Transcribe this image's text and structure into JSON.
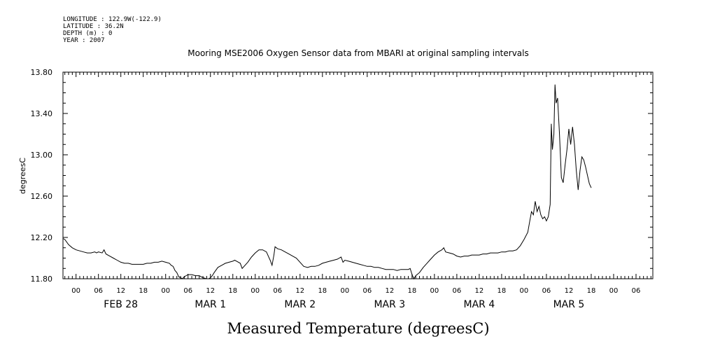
{
  "header": {
    "longitude": "LONGITUDE : 122.9W(-122.9)",
    "latitude": "LATITUDE : 36.2N",
    "depth": "DEPTH (m) : 0",
    "year": "YEAR : 2007"
  },
  "chart_data": {
    "type": "line",
    "title": "Mooring MSE2006 Oxygen Sensor data from MBARI at original sampling intervals",
    "ylabel": "degreesC",
    "caption": "Measured Temperature (degreesC)",
    "ylim": [
      11.8,
      13.8
    ],
    "yticks": [
      "11.80",
      "12.20",
      "12.60",
      "13.00",
      "13.40",
      "13.80"
    ],
    "xlim_hours": [
      -3.5,
      154.5
    ],
    "hour_ticks": [
      {
        "h": 0,
        "label": "00"
      },
      {
        "h": 6,
        "label": "06"
      },
      {
        "h": 12,
        "label": "12"
      },
      {
        "h": 18,
        "label": "18"
      },
      {
        "h": 24,
        "label": "00"
      },
      {
        "h": 30,
        "label": "06"
      },
      {
        "h": 36,
        "label": "12"
      },
      {
        "h": 42,
        "label": "18"
      },
      {
        "h": 48,
        "label": "00"
      },
      {
        "h": 54,
        "label": "06"
      },
      {
        "h": 60,
        "label": "12"
      },
      {
        "h": 66,
        "label": "18"
      },
      {
        "h": 72,
        "label": "00"
      },
      {
        "h": 78,
        "label": "06"
      },
      {
        "h": 84,
        "label": "12"
      },
      {
        "h": 90,
        "label": "18"
      },
      {
        "h": 96,
        "label": "00"
      },
      {
        "h": 102,
        "label": "06"
      },
      {
        "h": 108,
        "label": "12"
      },
      {
        "h": 114,
        "label": "18"
      },
      {
        "h": 120,
        "label": "00"
      },
      {
        "h": 126,
        "label": "06"
      },
      {
        "h": 132,
        "label": "12"
      },
      {
        "h": 138,
        "label": "18"
      },
      {
        "h": 144,
        "label": "00"
      },
      {
        "h": 150,
        "label": "06"
      }
    ],
    "day_labels": [
      {
        "h": 12,
        "label": "FEB 28"
      },
      {
        "h": 36,
        "label": "MAR  1"
      },
      {
        "h": 60,
        "label": "MAR  2"
      },
      {
        "h": 84,
        "label": "MAR  3"
      },
      {
        "h": 108,
        "label": "MAR  4"
      },
      {
        "h": 132,
        "label": "MAR  5"
      }
    ],
    "series": [
      {
        "points": [
          [
            -3.5,
            12.19
          ],
          [
            -3,
            12.18
          ],
          [
            -2,
            12.13
          ],
          [
            -1,
            12.1
          ],
          [
            0,
            12.08
          ],
          [
            1,
            12.07
          ],
          [
            2,
            12.06
          ],
          [
            3,
            12.05
          ],
          [
            4,
            12.05
          ],
          [
            5,
            12.06
          ],
          [
            5.5,
            12.05
          ],
          [
            6,
            12.06
          ],
          [
            7,
            12.05
          ],
          [
            7.5,
            12.08
          ],
          [
            8,
            12.04
          ],
          [
            9,
            12.02
          ],
          [
            10,
            12.0
          ],
          [
            11,
            11.98
          ],
          [
            12,
            11.96
          ],
          [
            13,
            11.95
          ],
          [
            14,
            11.95
          ],
          [
            15,
            11.94
          ],
          [
            16,
            11.94
          ],
          [
            17,
            11.94
          ],
          [
            18,
            11.94
          ],
          [
            19,
            11.95
          ],
          [
            20,
            11.95
          ],
          [
            21,
            11.96
          ],
          [
            22,
            11.96
          ],
          [
            23,
            11.97
          ],
          [
            24,
            11.96
          ],
          [
            25,
            11.95
          ],
          [
            25.5,
            11.93
          ],
          [
            26,
            11.92
          ],
          [
            26.5,
            11.88
          ],
          [
            27,
            11.86
          ],
          [
            27.5,
            11.82
          ],
          [
            28,
            11.81
          ],
          [
            28.5,
            11.8
          ],
          [
            29,
            11.82
          ],
          [
            30,
            11.84
          ],
          [
            31,
            11.84
          ],
          [
            32,
            11.83
          ],
          [
            33,
            11.83
          ],
          [
            33.5,
            11.82
          ],
          [
            34,
            11.81
          ],
          [
            35,
            11.8
          ],
          [
            35.5,
            11.8
          ],
          [
            36,
            11.81
          ],
          [
            36.5,
            11.83
          ],
          [
            37,
            11.86
          ],
          [
            38,
            11.91
          ],
          [
            39,
            11.93
          ],
          [
            40,
            11.95
          ],
          [
            41,
            11.96
          ],
          [
            42,
            11.97
          ],
          [
            42.5,
            11.98
          ],
          [
            43,
            11.97
          ],
          [
            44,
            11.95
          ],
          [
            44.5,
            11.9
          ],
          [
            45,
            11.92
          ],
          [
            46,
            11.96
          ],
          [
            47,
            12.01
          ],
          [
            48,
            12.05
          ],
          [
            49,
            12.08
          ],
          [
            50,
            12.08
          ],
          [
            51,
            12.06
          ],
          [
            51.5,
            12.02
          ],
          [
            52,
            11.98
          ],
          [
            52.5,
            11.93
          ],
          [
            53,
            12.03
          ],
          [
            53.3,
            12.11
          ],
          [
            54,
            12.09
          ],
          [
            55,
            12.08
          ],
          [
            56,
            12.06
          ],
          [
            57,
            12.04
          ],
          [
            58,
            12.02
          ],
          [
            59,
            12.0
          ],
          [
            60,
            11.96
          ],
          [
            61,
            11.92
          ],
          [
            62,
            11.91
          ],
          [
            63,
            11.92
          ],
          [
            64,
            11.92
          ],
          [
            65,
            11.93
          ],
          [
            66,
            11.95
          ],
          [
            67,
            11.96
          ],
          [
            68,
            11.97
          ],
          [
            69,
            11.98
          ],
          [
            70,
            11.99
          ],
          [
            71,
            12.01
          ],
          [
            71.5,
            11.96
          ],
          [
            72,
            11.98
          ],
          [
            73,
            11.97
          ],
          [
            74,
            11.96
          ],
          [
            75,
            11.95
          ],
          [
            76,
            11.94
          ],
          [
            77,
            11.93
          ],
          [
            78,
            11.92
          ],
          [
            79,
            11.92
          ],
          [
            80,
            11.91
          ],
          [
            81,
            11.91
          ],
          [
            82,
            11.9
          ],
          [
            83,
            11.89
          ],
          [
            84,
            11.89
          ],
          [
            85,
            11.89
          ],
          [
            86,
            11.88
          ],
          [
            87,
            11.89
          ],
          [
            88,
            11.89
          ],
          [
            89,
            11.89
          ],
          [
            89.5,
            11.9
          ],
          [
            90,
            11.84
          ],
          [
            90.5,
            11.8
          ],
          [
            91,
            11.83
          ],
          [
            92,
            11.86
          ],
          [
            93,
            11.91
          ],
          [
            94,
            11.95
          ],
          [
            95,
            11.99
          ],
          [
            96,
            12.03
          ],
          [
            97,
            12.06
          ],
          [
            98,
            12.08
          ],
          [
            98.5,
            12.1
          ],
          [
            99,
            12.06
          ],
          [
            100,
            12.05
          ],
          [
            101,
            12.04
          ],
          [
            102,
            12.02
          ],
          [
            103,
            12.01
          ],
          [
            104,
            12.02
          ],
          [
            105,
            12.02
          ],
          [
            106,
            12.03
          ],
          [
            107,
            12.03
          ],
          [
            108,
            12.03
          ],
          [
            109,
            12.04
          ],
          [
            110,
            12.04
          ],
          [
            111,
            12.05
          ],
          [
            112,
            12.05
          ],
          [
            113,
            12.05
          ],
          [
            114,
            12.06
          ],
          [
            115,
            12.06
          ],
          [
            116,
            12.07
          ],
          [
            117,
            12.07
          ],
          [
            118,
            12.08
          ],
          [
            119,
            12.12
          ],
          [
            120,
            12.18
          ],
          [
            121,
            12.25
          ],
          [
            121.5,
            12.35
          ],
          [
            122,
            12.45
          ],
          [
            122.5,
            12.42
          ],
          [
            123,
            12.55
          ],
          [
            123.5,
            12.45
          ],
          [
            124,
            12.5
          ],
          [
            124.5,
            12.42
          ],
          [
            125,
            12.38
          ],
          [
            125.5,
            12.4
          ],
          [
            126,
            12.36
          ],
          [
            126.5,
            12.4
          ],
          [
            127,
            12.52
          ],
          [
            127.3,
            13.3
          ],
          [
            127.6,
            13.05
          ],
          [
            128,
            13.2
          ],
          [
            128.3,
            13.68
          ],
          [
            128.6,
            13.5
          ],
          [
            129,
            13.55
          ],
          [
            129.5,
            13.2
          ],
          [
            130,
            12.78
          ],
          [
            130.5,
            12.73
          ],
          [
            131,
            12.9
          ],
          [
            131.5,
            13.05
          ],
          [
            132,
            13.25
          ],
          [
            132.5,
            13.1
          ],
          [
            133,
            13.27
          ],
          [
            133.5,
            13.1
          ],
          [
            134,
            12.85
          ],
          [
            134.5,
            12.66
          ],
          [
            135,
            12.85
          ],
          [
            135.5,
            12.98
          ],
          [
            136,
            12.95
          ],
          [
            136.5,
            12.88
          ],
          [
            137,
            12.8
          ],
          [
            137.5,
            12.72
          ],
          [
            138,
            12.68
          ]
        ]
      }
    ]
  }
}
